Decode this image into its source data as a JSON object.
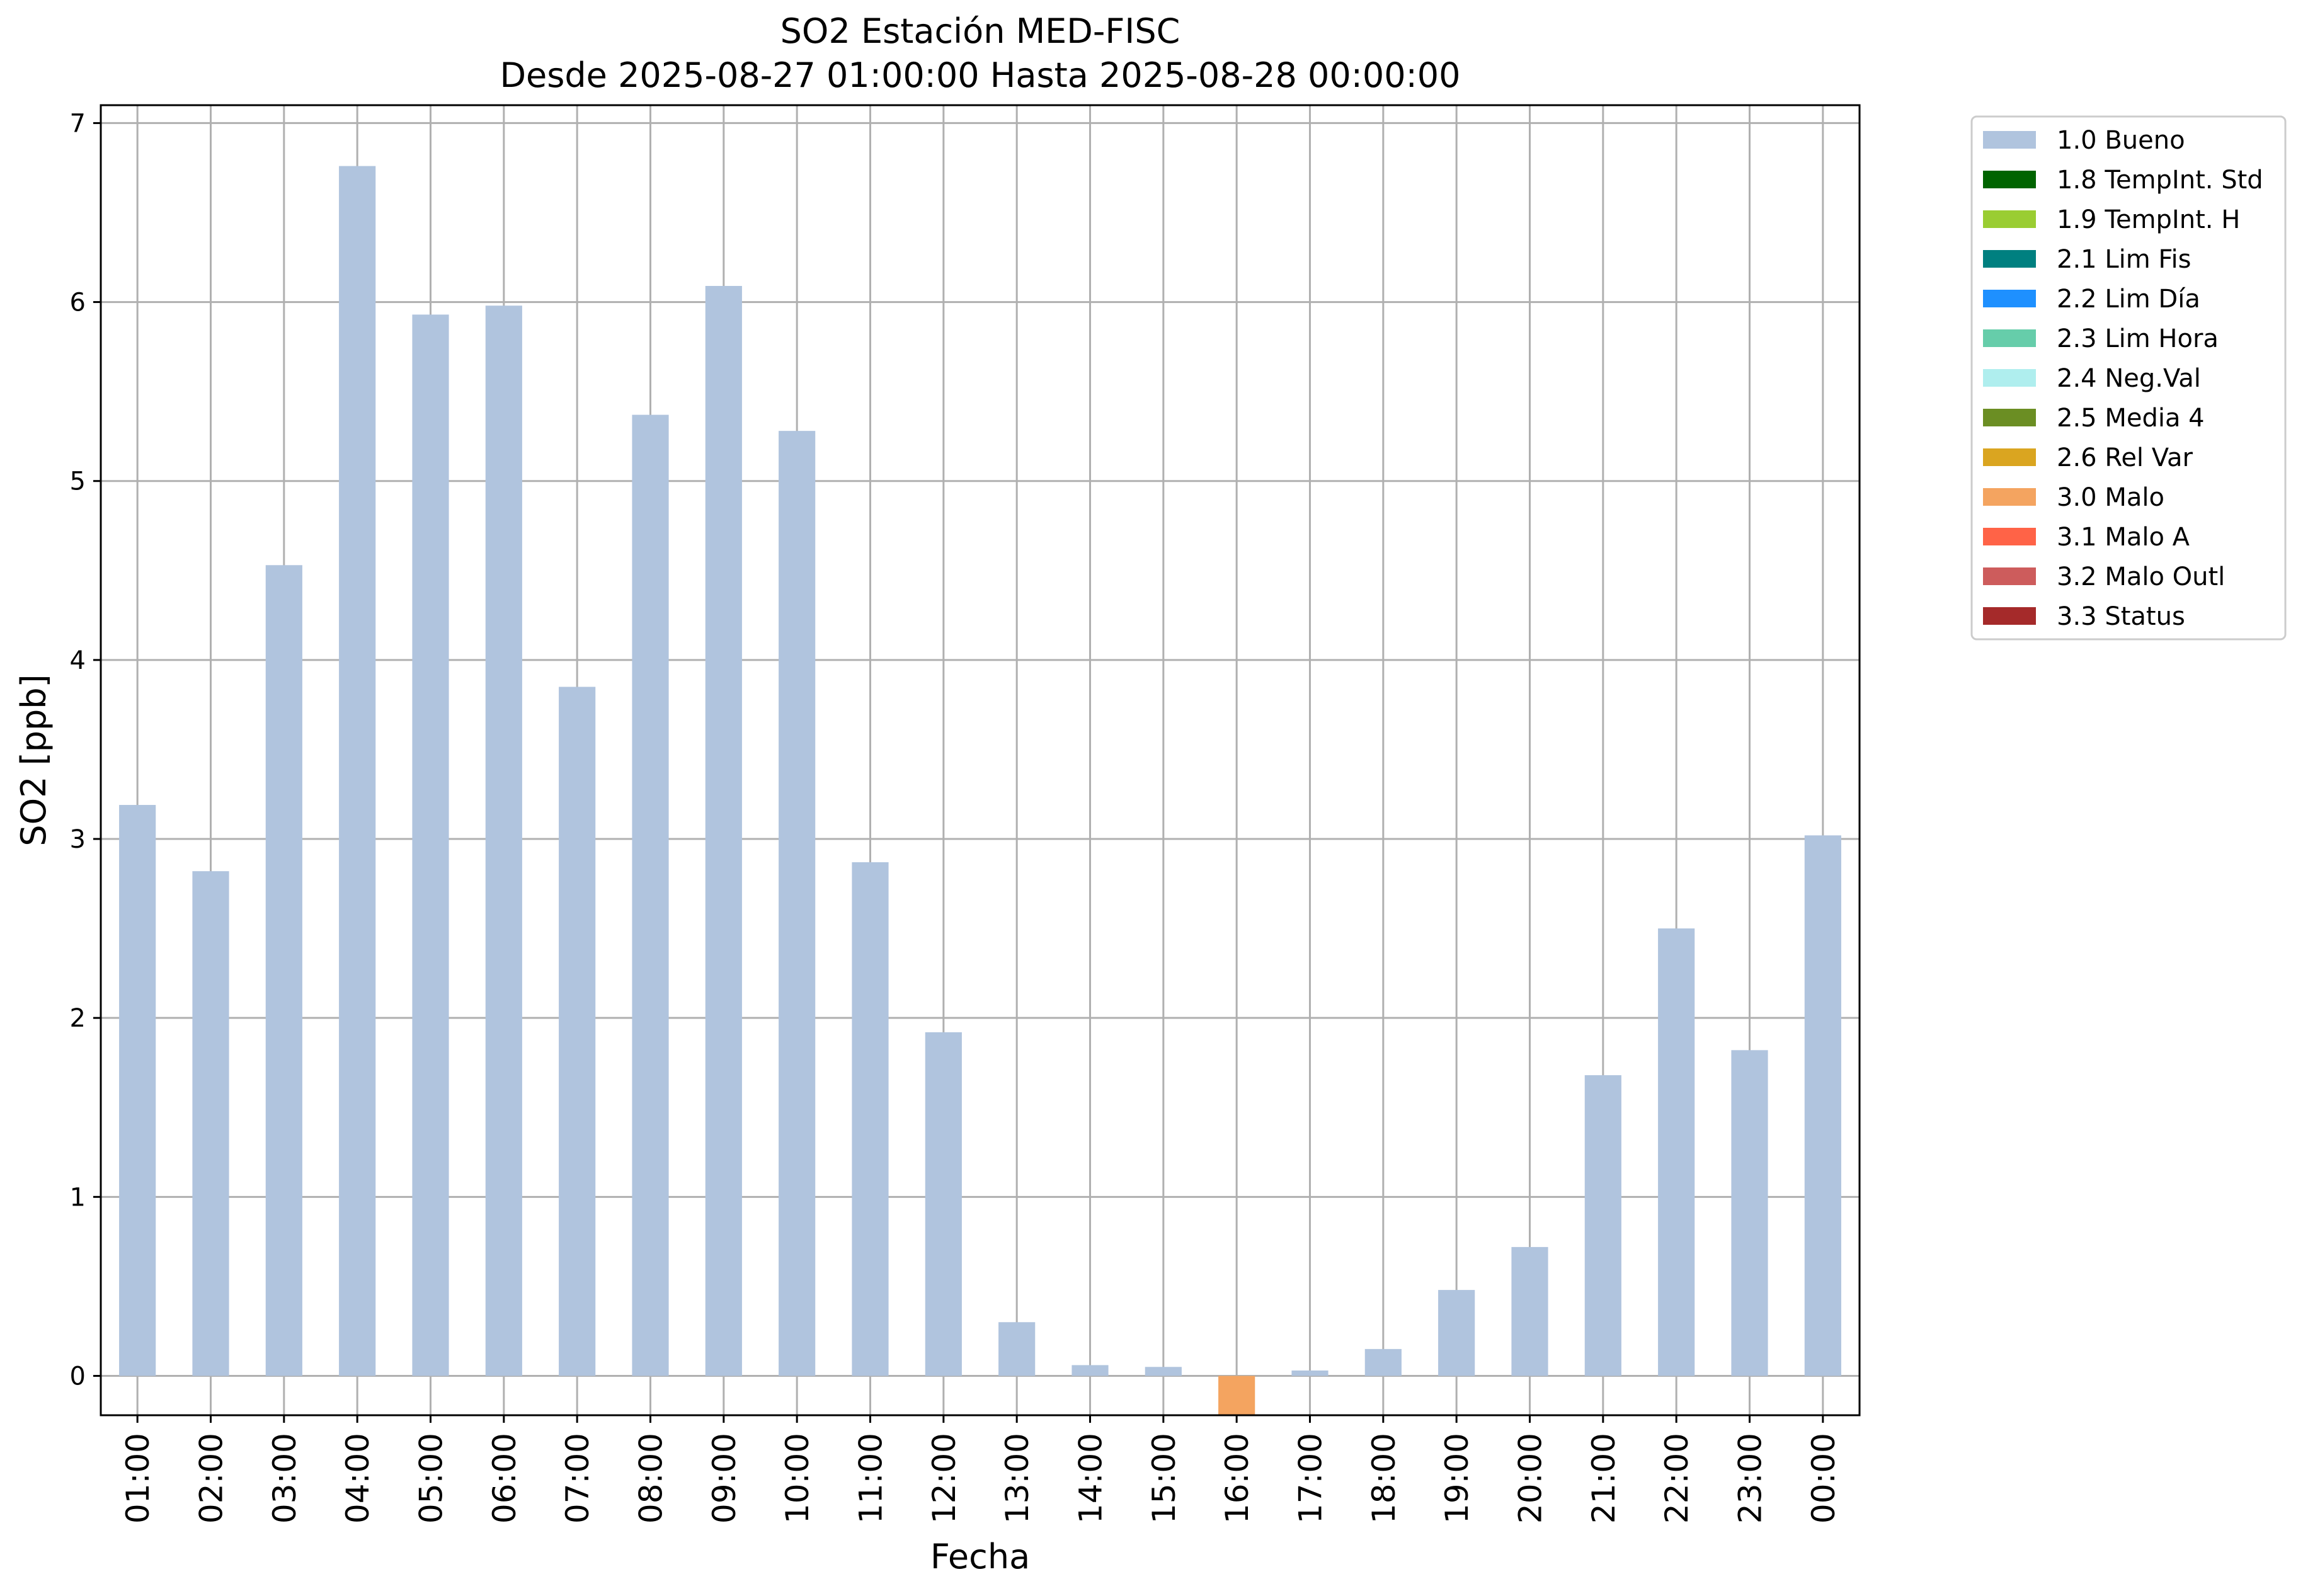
{
  "chart_data": {
    "type": "bar",
    "title": "SO2 Estación MED-FISC",
    "subtitle": "Desde 2025-08-27 01:00:00 Hasta 2025-08-28 00:00:00",
    "xlabel": "Fecha",
    "ylabel": "SO2 [ppb]",
    "ylim": [
      -0.22,
      7.1
    ],
    "yticks": [
      0,
      1,
      2,
      3,
      4,
      5,
      6,
      7
    ],
    "grid": true,
    "legend_position": "outside-top-right",
    "categories": [
      "01:00",
      "02:00",
      "03:00",
      "04:00",
      "05:00",
      "06:00",
      "07:00",
      "08:00",
      "09:00",
      "10:00",
      "11:00",
      "12:00",
      "13:00",
      "14:00",
      "15:00",
      "16:00",
      "17:00",
      "18:00",
      "19:00",
      "20:00",
      "21:00",
      "22:00",
      "23:00",
      "00:00"
    ],
    "values": [
      3.19,
      2.82,
      4.53,
      6.76,
      5.93,
      5.98,
      3.85,
      5.37,
      6.09,
      5.28,
      2.87,
      1.92,
      0.3,
      0.06,
      0.05,
      -0.22,
      0.03,
      0.15,
      0.48,
      0.72,
      1.68,
      2.5,
      1.82,
      3.02
    ],
    "bar_flags": [
      "1.0 Bueno",
      "1.0 Bueno",
      "1.0 Bueno",
      "1.0 Bueno",
      "1.0 Bueno",
      "1.0 Bueno",
      "1.0 Bueno",
      "1.0 Bueno",
      "1.0 Bueno",
      "1.0 Bueno",
      "1.0 Bueno",
      "1.0 Bueno",
      "1.0 Bueno",
      "1.0 Bueno",
      "1.0 Bueno",
      "3.0 Malo",
      "1.0 Bueno",
      "1.0 Bueno",
      "1.0 Bueno",
      "1.0 Bueno",
      "1.0 Bueno",
      "1.0 Bueno",
      "1.0 Bueno",
      "1.0 Bueno"
    ],
    "legend": [
      {
        "label": "1.0 Bueno",
        "color": "#b0c4de"
      },
      {
        "label": "1.8 TempInt. Std",
        "color": "#006400"
      },
      {
        "label": "1.9 TempInt. H",
        "color": "#9acd32"
      },
      {
        "label": "2.1 Lim Fis",
        "color": "#008080"
      },
      {
        "label": "2.2 Lim Día",
        "color": "#1e90ff"
      },
      {
        "label": "2.3 Lim Hora",
        "color": "#66cdaa"
      },
      {
        "label": "2.4 Neg.Val",
        "color": "#afeeee"
      },
      {
        "label": "2.5 Media 4",
        "color": "#6b8e23"
      },
      {
        "label": "2.6 Rel Var",
        "color": "#daa520"
      },
      {
        "label": "3.0 Malo",
        "color": "#f4a460"
      },
      {
        "label": "3.1 Malo A",
        "color": "#ff6347"
      },
      {
        "label": "3.2 Malo Outl",
        "color": "#cd5c5c"
      },
      {
        "label": "3.3 Status",
        "color": "#a52a2a"
      }
    ]
  }
}
